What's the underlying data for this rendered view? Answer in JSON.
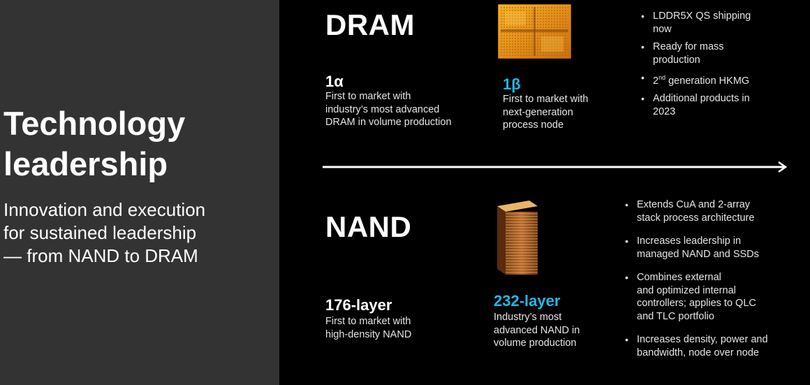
{
  "left": {
    "title_lines": [
      "Technology",
      "leadership"
    ],
    "subtitle_lines": [
      "Innovation and execution",
      "for sustained leadership",
      "— from NAND to DRAM"
    ]
  },
  "dram": {
    "title": "DRAM",
    "node1": {
      "label": "1α",
      "desc_lines": [
        "First to market with",
        "industry’s most advanced",
        "DRAM in volume production"
      ]
    },
    "node2": {
      "label": "1β",
      "desc_lines": [
        "First to market with",
        "next-generation",
        "process node"
      ]
    },
    "bullet_marker": "•",
    "bullets": [
      {
        "lines": [
          "LDDR5X QS shipping",
          "now"
        ]
      },
      {
        "lines": [
          "Ready for mass",
          "production"
        ]
      },
      {
        "pre": "2",
        "sup": "nd",
        "post": " generation HKMG"
      },
      {
        "lines": [
          "Additional products in",
          "2023"
        ]
      }
    ]
  },
  "nand": {
    "title": "NAND",
    "node1": {
      "label": "176-layer",
      "desc_lines": [
        "First to market with",
        "high-density NAND"
      ]
    },
    "node2": {
      "label": "232-layer",
      "desc_lines": [
        "Industry’s most",
        "advanced NAND in",
        "volume production"
      ]
    },
    "bullet_marker": "•",
    "bullets": [
      {
        "lines": [
          "Extends CuA and 2-array",
          "stack process architecture"
        ]
      },
      {
        "lines": [
          "Increases leadership in",
          "managed NAND and SSDs"
        ]
      },
      {
        "lines": [
          "Combines external",
          "and optimized internal",
          "controllers; applies to QLC",
          "and TLC portfolio"
        ]
      },
      {
        "lines": [
          "Increases density, power and",
          "bandwidth, node over node"
        ]
      }
    ]
  },
  "colors": {
    "accent": "#20b8e6",
    "left_panel": "#333333",
    "background": "#000000"
  },
  "icons": {
    "dram_image": "dram-die-icon",
    "nand_image": "nand-stack-icon",
    "divider": "arrow-right-icon"
  }
}
